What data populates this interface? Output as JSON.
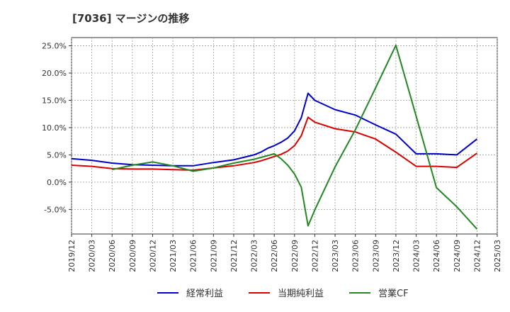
{
  "chart_data": {
    "type": "line",
    "title": "[7036]  マージンの推移",
    "xlabel": "",
    "ylabel": "",
    "ylim": [
      -9.5,
      26.5
    ],
    "yticks": [
      25,
      20,
      15,
      10,
      5,
      0,
      -5
    ],
    "yticklabels": [
      "25.0%",
      "20.0%",
      "15.0%",
      "10.0%",
      "5.0%",
      "0.0%",
      "-5.0%"
    ],
    "xticklabels": [
      "2019/12",
      "2020/03",
      "2020/06",
      "2020/09",
      "2020/12",
      "2021/03",
      "2021/06",
      "2021/09",
      "2021/12",
      "2022/03",
      "2022/06",
      "2022/09",
      "2022/12",
      "2023/03",
      "2023/06",
      "2023/09",
      "2023/12",
      "2024/03",
      "2024/06",
      "2024/09",
      "2024/12",
      "2025/03"
    ],
    "xlim": [
      "2019/12",
      "2025/03"
    ],
    "grid": true,
    "legend_position": "bottom",
    "series": [
      {
        "name": "経常利益",
        "color": "#0000cc",
        "points": [
          [
            "2019/12",
            4.3
          ],
          [
            "2020/03",
            4.0
          ],
          [
            "2020/06",
            3.5
          ],
          [
            "2020/09",
            3.2
          ],
          [
            "2020/12",
            3.1
          ],
          [
            "2021/03",
            3.0
          ],
          [
            "2021/06",
            3.0
          ],
          [
            "2021/09",
            3.6
          ],
          [
            "2021/12",
            4.1
          ],
          [
            "2022/03",
            5.0
          ],
          [
            "2022/04",
            5.5
          ],
          [
            "2022/05",
            6.2
          ],
          [
            "2022/06",
            6.7
          ],
          [
            "2022/07",
            7.3
          ],
          [
            "2022/08",
            8.1
          ],
          [
            "2022/09",
            9.4
          ],
          [
            "2022/10",
            11.8
          ],
          [
            "2022/11",
            16.3
          ],
          [
            "2022/12",
            15.0
          ],
          [
            "2023/03",
            13.3
          ],
          [
            "2023/06",
            12.3
          ],
          [
            "2023/09",
            10.5
          ],
          [
            "2023/12",
            8.8
          ],
          [
            "2024/03",
            5.2
          ],
          [
            "2024/06",
            5.2
          ],
          [
            "2024/09",
            5.0
          ],
          [
            "2024/12",
            7.9
          ]
        ]
      },
      {
        "name": "当期純利益",
        "color": "#dd0000",
        "points": [
          [
            "2019/12",
            3.1
          ],
          [
            "2020/03",
            2.9
          ],
          [
            "2020/06",
            2.5
          ],
          [
            "2020/09",
            2.4
          ],
          [
            "2020/12",
            2.4
          ],
          [
            "2021/03",
            2.3
          ],
          [
            "2021/06",
            2.2
          ],
          [
            "2021/09",
            2.6
          ],
          [
            "2021/12",
            3.0
          ],
          [
            "2022/03",
            3.6
          ],
          [
            "2022/04",
            3.9
          ],
          [
            "2022/05",
            4.3
          ],
          [
            "2022/06",
            4.7
          ],
          [
            "2022/07",
            5.1
          ],
          [
            "2022/08",
            5.7
          ],
          [
            "2022/09",
            6.7
          ],
          [
            "2022/10",
            8.5
          ],
          [
            "2022/11",
            11.9
          ],
          [
            "2022/12",
            11.0
          ],
          [
            "2023/03",
            9.8
          ],
          [
            "2023/06",
            9.2
          ],
          [
            "2023/09",
            7.9
          ],
          [
            "2023/12",
            5.5
          ],
          [
            "2024/03",
            2.9
          ],
          [
            "2024/06",
            2.9
          ],
          [
            "2024/09",
            2.7
          ],
          [
            "2024/12",
            5.3
          ]
        ]
      },
      {
        "name": "営業CF",
        "color": "#228822",
        "points": [
          [
            "2020/06",
            2.3
          ],
          [
            "2020/09",
            3.1
          ],
          [
            "2020/12",
            3.7
          ],
          [
            "2021/03",
            3.0
          ],
          [
            "2021/06",
            2.0
          ],
          [
            "2021/09",
            2.6
          ],
          [
            "2021/12",
            3.5
          ],
          [
            "2022/03",
            4.2
          ],
          [
            "2022/06",
            5.2
          ],
          [
            "2022/07",
            4.3
          ],
          [
            "2022/08",
            3.1
          ],
          [
            "2022/09",
            1.5
          ],
          [
            "2022/10",
            -0.9
          ],
          [
            "2022/11",
            -8.0
          ],
          [
            "2022/12",
            -5.1
          ],
          [
            "2023/03",
            2.8
          ],
          [
            "2023/06",
            9.6
          ],
          [
            "2023/09",
            17.3
          ],
          [
            "2023/12",
            25.1
          ],
          [
            "2024/03",
            12.1
          ],
          [
            "2024/06",
            -1.0
          ],
          [
            "2024/09",
            -4.5
          ],
          [
            "2024/12",
            -8.6
          ]
        ]
      }
    ]
  }
}
